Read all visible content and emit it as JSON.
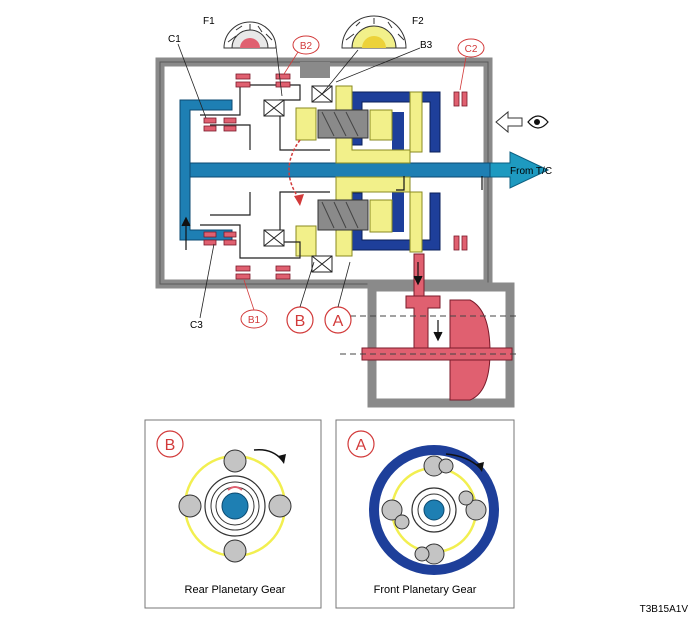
{
  "labels": {
    "c1": "C1",
    "f1": "F1",
    "b2": "B2",
    "f2": "F2",
    "b3": "B3",
    "c2": "C2",
    "from_tc": "From T/C",
    "c3": "C3",
    "b1": "B1",
    "b": "B",
    "a": "A"
  },
  "panels": {
    "rear": {
      "badge": "B",
      "caption": "Rear Planetary Gear"
    },
    "front": {
      "badge": "A",
      "caption": "Front Planetary Gear"
    }
  },
  "figure_code": "T3B15A1V",
  "colors": {
    "housing": "#8a8a8a",
    "shaft_blue": "#1e7fb3",
    "gear_yellow": "#f2f08a",
    "red_component": "#e06070",
    "dark_blue_ring": "#1e3f9a",
    "accent_red": "#d23a3a"
  }
}
